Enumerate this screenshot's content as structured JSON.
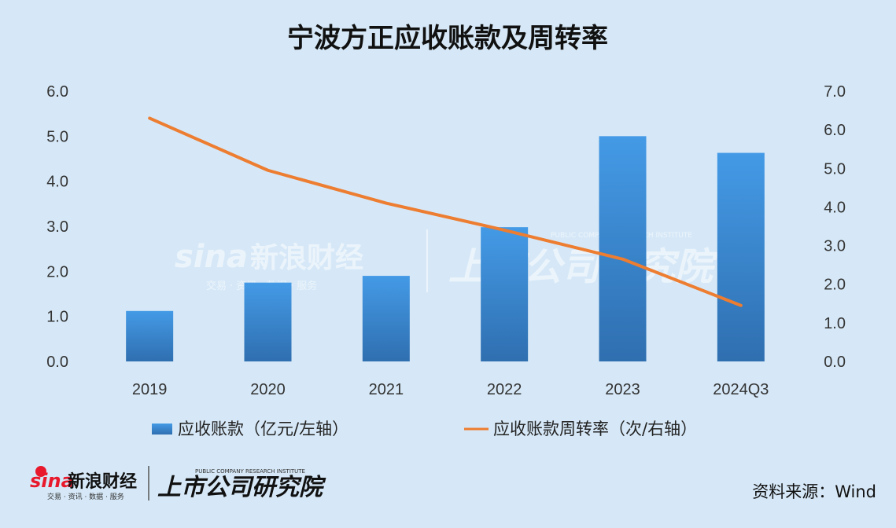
{
  "chart_data": {
    "type": "bar+line",
    "title": "宁波方正应收账款及周转率",
    "categories": [
      "2019",
      "2020",
      "2021",
      "2022",
      "2023",
      "2024Q3"
    ],
    "series": [
      {
        "name": "应收账款（亿元/左轴）",
        "type": "bar",
        "axis": "left",
        "color": "#3a8fd8",
        "values": [
          1.12,
          1.75,
          1.9,
          2.98,
          5.0,
          4.63
        ]
      },
      {
        "name": "应收账款周转率（次/右轴）",
        "type": "line",
        "axis": "right",
        "color": "#ed7d31",
        "values": [
          6.3,
          4.95,
          4.1,
          3.4,
          2.65,
          1.45
        ]
      }
    ],
    "y_left": {
      "min": 0,
      "max": 6,
      "step": 1,
      "ticks": [
        "0.0",
        "1.0",
        "2.0",
        "3.0",
        "4.0",
        "5.0",
        "6.0"
      ]
    },
    "y_right": {
      "min": 0,
      "max": 7,
      "step": 1,
      "ticks": [
        "0.0",
        "1.0",
        "2.0",
        "3.0",
        "4.0",
        "5.0",
        "6.0",
        "7.0"
      ]
    },
    "grid": false,
    "legend_position": "bottom"
  },
  "watermark": {
    "brand_en": "sina",
    "brand_cn": "新浪财经",
    "brand_sub": "交易 · 资讯 · 数据 · 服务",
    "institute": "上市公司研究院",
    "institute_en": "PUBLIC COMPANY RESEARCH INSTITUTE"
  },
  "footer": {
    "brand_en": "sina",
    "brand_cn": "新浪财经",
    "brand_sub": "交易 · 资讯 · 数据 · 服务",
    "institute": "上市公司研究院",
    "institute_en": "PUBLIC COMPANY RESEARCH INSTITUTE",
    "source": "资料来源：Wind"
  }
}
